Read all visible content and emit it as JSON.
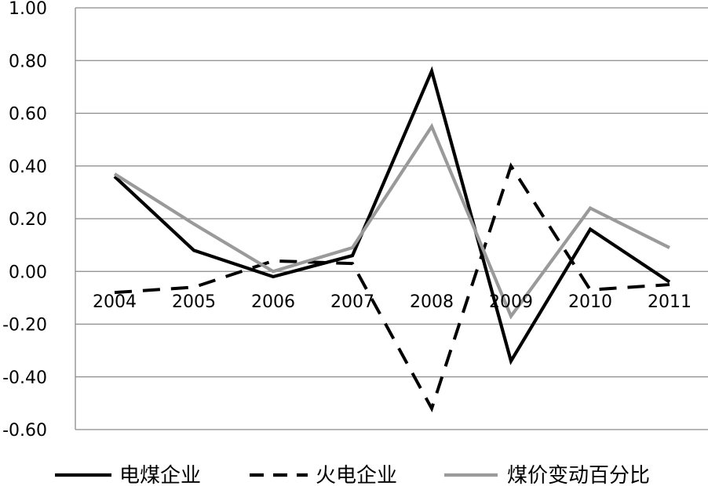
{
  "chart_data": {
    "type": "line",
    "categories": [
      "2004",
      "2005",
      "2006",
      "2007",
      "2008",
      "2009",
      "2010",
      "2011"
    ],
    "ylim": [
      -0.6,
      1.0
    ],
    "yticks": [
      "1.00",
      "0.80",
      "0.60",
      "0.40",
      "0.20",
      "0.00",
      "-0.20",
      "-0.40",
      "-0.60"
    ],
    "grid": true,
    "legend_position": "bottom",
    "series": [
      {
        "name": "电煤企业",
        "values": [
          0.36,
          0.08,
          -0.02,
          0.06,
          0.76,
          -0.34,
          0.16,
          -0.04
        ],
        "color": "#000000",
        "style": "solid"
      },
      {
        "name": "火电企业",
        "values": [
          -0.08,
          -0.06,
          0.04,
          0.03,
          -0.52,
          0.4,
          -0.07,
          -0.05
        ],
        "color": "#000000",
        "style": "dashed"
      },
      {
        "name": "煤价变动百分比",
        "values": [
          0.37,
          0.18,
          0.0,
          0.09,
          0.55,
          -0.17,
          0.24,
          0.09
        ],
        "color": "#9a9a9a",
        "style": "solid"
      }
    ]
  }
}
